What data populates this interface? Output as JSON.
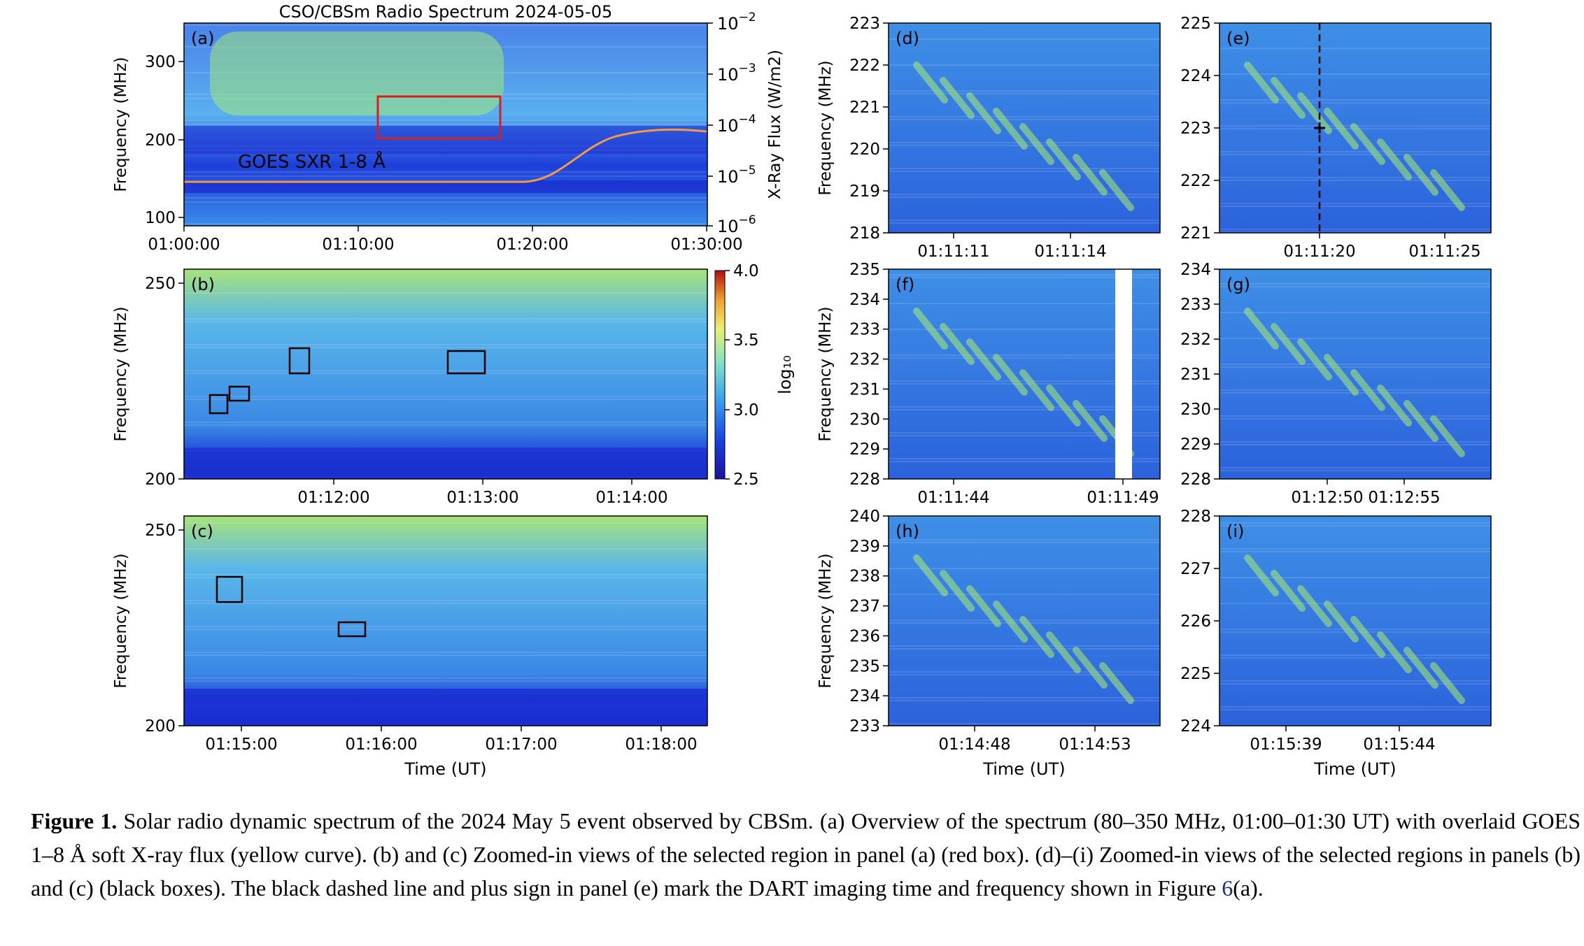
{
  "colors": {
    "spectrum_low": "#1a2ed2",
    "spectrum_mid": "#3a9bec",
    "spectrum_high": "#a8f070",
    "goes_curve": "#f29a45",
    "region_box": "#d62020",
    "event_box": "#000000"
  },
  "panels": {
    "a": {
      "tag": "(a)",
      "title": "CSO/CBSm Radio Spectrum 2024-05-05",
      "ylabel": "Frequency (MHz)",
      "yticks": [
        "300",
        "200",
        "100"
      ],
      "xticks": [
        "01:00:00",
        "01:10:00",
        "01:20:00",
        "01:30:00"
      ],
      "right_label": "X-Ray Flux (W/m2)",
      "right_ticks": [
        {
          "base": "10",
          "exp": "−2"
        },
        {
          "base": "10",
          "exp": "−3"
        },
        {
          "base": "10",
          "exp": "−4"
        },
        {
          "base": "10",
          "exp": "−5"
        },
        {
          "base": "10",
          "exp": "−6"
        }
      ],
      "goes_label": "GOES SXR 1-8 Å"
    },
    "b": {
      "tag": "(b)",
      "ylabel": "Frequency (MHz)",
      "yticks": [
        "250",
        "200"
      ],
      "xticks": [
        "01:12:00",
        "01:13:00",
        "01:14:00"
      ],
      "colorbar_label": "log₁₀",
      "colorbar_ticks": [
        "4.0",
        "3.5",
        "3.0",
        "2.5"
      ]
    },
    "c": {
      "tag": "(c)",
      "ylabel": "Frequency (MHz)",
      "yticks": [
        "250",
        "200"
      ],
      "xticks": [
        "01:15:00",
        "01:16:00",
        "01:17:00",
        "01:18:00"
      ],
      "xlabel": "Time (UT)"
    },
    "d": {
      "tag": "(d)",
      "ylabel": "Frequency (MHz)",
      "yticks": [
        "223",
        "222",
        "221",
        "220",
        "219",
        "218"
      ],
      "xticks": [
        "01:11:11",
        "01:11:14"
      ]
    },
    "e": {
      "tag": "(e)",
      "yticks": [
        "225",
        "224",
        "223",
        "222",
        "221"
      ],
      "xticks": [
        "01:11:20",
        "01:11:25"
      ]
    },
    "f": {
      "tag": "(f)",
      "ylabel": "Frequency (MHz)",
      "yticks": [
        "235",
        "234",
        "233",
        "232",
        "231",
        "230",
        "229",
        "228"
      ],
      "xticks": [
        "01:11:44",
        "01:11:49"
      ]
    },
    "g": {
      "tag": "(g)",
      "yticks": [
        "234",
        "233",
        "232",
        "231",
        "230",
        "229",
        "228"
      ],
      "xticks": [
        "01:12:50",
        "01:12:55"
      ]
    },
    "h": {
      "tag": "(h)",
      "ylabel": "Frequency (MHz)",
      "yticks": [
        "240",
        "239",
        "238",
        "237",
        "236",
        "235",
        "234",
        "233"
      ],
      "xticks": [
        "01:14:48",
        "01:14:53"
      ],
      "xlabel": "Time (UT)"
    },
    "i": {
      "tag": "(i)",
      "yticks": [
        "228",
        "227",
        "226",
        "225",
        "224"
      ],
      "xticks": [
        "01:15:39",
        "01:15:44"
      ],
      "xlabel": "Time (UT)"
    }
  },
  "caption": {
    "lead": "Figure 1.",
    "text_before_ref": "Solar radio dynamic spectrum of the 2024 May 5 event observed by CBSm. (a) Overview of the spectrum (80–350 MHz, 01:00–01:30 UT) with overlaid GOES 1–8 Å soft X-ray flux (yellow curve). (b) and (c) Zoomed-in views of the selected region in panel (a) (red box). (d)–(i) Zoomed-in views of the selected regions in panels (b) and (c) (black boxes). The black dashed line and plus sign in panel (e) mark the DART imaging time and frequency shown in Figure",
    "ref": "6",
    "text_after_ref": "(a)."
  }
}
